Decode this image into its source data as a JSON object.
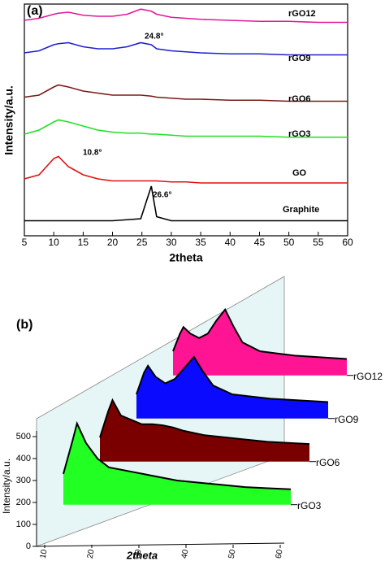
{
  "chart_data": [
    {
      "type": "line",
      "panel_label": "(a)",
      "xlabel": "2theta",
      "ylabel": "Intensity/a.u.",
      "xlim": [
        5,
        60
      ],
      "xticks": [
        5,
        10,
        15,
        20,
        25,
        30,
        35,
        40,
        45,
        50,
        55,
        60
      ],
      "x": [
        5,
        7.5,
        10,
        10.8,
        12.5,
        15,
        17.5,
        20,
        22.5,
        24.8,
        26.6,
        27.5,
        30,
        32.5,
        35,
        40,
        45,
        50,
        55,
        60
      ],
      "series": [
        {
          "name": "rGO12",
          "color": "#e0189a",
          "values": [
            4,
            5,
            7,
            7.5,
            8,
            6.5,
            6,
            6,
            7,
            9.5,
            8.5,
            7,
            5.5,
            5,
            4.5,
            4,
            3.5,
            3.5,
            3,
            3
          ]
        },
        {
          "name": "rGO9",
          "color": "#2020d0",
          "values": [
            4,
            5,
            8,
            8.5,
            9,
            7,
            6,
            6,
            7,
            9,
            8,
            6,
            5,
            4.5,
            4,
            3.5,
            3.5,
            3,
            3,
            3
          ]
        },
        {
          "name": "rGO6",
          "color": "#7a1a1a",
          "values": [
            5,
            6,
            10,
            11,
            10,
            8,
            7,
            6,
            6,
            6,
            5.5,
            5,
            4.5,
            4,
            4,
            3.5,
            3.5,
            3,
            3,
            3
          ]
        },
        {
          "name": "rGO3",
          "color": "#22e022",
          "values": [
            4,
            6,
            10,
            11,
            10,
            8,
            6,
            5,
            4.5,
            4.5,
            4,
            4,
            3.5,
            3,
            3,
            3,
            3,
            2.5,
            2.5,
            2.5
          ]
        },
        {
          "name": "GO",
          "color": "#e01010",
          "values": [
            4,
            6,
            14,
            15,
            10,
            6,
            4,
            3,
            3,
            3,
            3,
            3,
            2.5,
            2.5,
            2,
            2,
            2,
            2,
            2,
            2
          ]
        },
        {
          "name": "Graphite",
          "color": "#000000",
          "values": [
            1,
            1,
            1,
            1,
            1,
            1,
            1,
            1,
            1.5,
            2,
            18,
            3,
            1,
            1,
            1,
            1,
            1,
            1,
            1,
            1
          ]
        }
      ],
      "annotations": [
        "24.8°",
        "10.8°",
        "26.6°"
      ]
    },
    {
      "type": "waterfall",
      "panel_label": "(b)",
      "xlabel": "2theta",
      "ylabel": "Intensity/a.u.",
      "xlim": [
        10,
        60
      ],
      "xticks": [
        10,
        20,
        30,
        40,
        50,
        60
      ],
      "ylim": [
        0,
        500
      ],
      "yticks": [
        0,
        100,
        200,
        300,
        400,
        500
      ],
      "x": [
        10,
        12,
        13,
        15,
        17.5,
        20,
        22.5,
        25,
        27.5,
        30,
        35,
        40,
        45,
        50,
        55,
        60
      ],
      "series": [
        {
          "name": "rGO3",
          "color": "#22ff22",
          "values": [
            330,
            480,
            560,
            470,
            400,
            360,
            350,
            340,
            330,
            320,
            300,
            290,
            280,
            270,
            265,
            260
          ]
        },
        {
          "name": "rGO6",
          "color": "#7a0000",
          "values": [
            300,
            420,
            470,
            400,
            380,
            360,
            360,
            355,
            345,
            330,
            310,
            300,
            290,
            280,
            275,
            270
          ]
        },
        {
          "name": "rGO9",
          "color": "#0a0aff",
          "values": [
            300,
            400,
            430,
            380,
            350,
            370,
            420,
            470,
            400,
            340,
            300,
            290,
            280,
            275,
            270,
            265
          ]
        },
        {
          "name": "rGO12",
          "color": "#ff1493",
          "values": [
            300,
            380,
            410,
            380,
            360,
            380,
            440,
            490,
            410,
            340,
            300,
            290,
            280,
            275,
            270,
            265
          ]
        }
      ]
    }
  ]
}
